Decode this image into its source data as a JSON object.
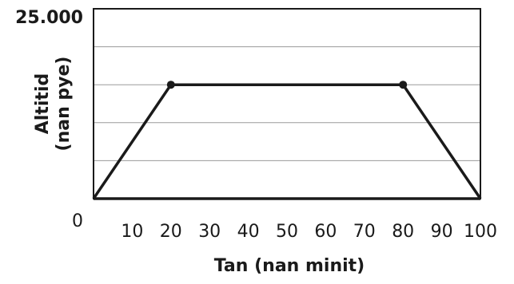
{
  "chart_data": {
    "type": "line",
    "title": "",
    "xlabel": "Tan (nan minit)",
    "ylabel_lines": [
      "Altitid",
      "(nan pye)"
    ],
    "xlim": [
      0,
      100
    ],
    "ylim": [
      0,
      25000
    ],
    "y_top_label": "25.000",
    "x_tick_labels": [
      "0",
      "10",
      "20",
      "30",
      "40",
      "50",
      "60",
      "70",
      "80",
      "90",
      "100"
    ],
    "x_ticks": [
      0,
      10,
      20,
      30,
      40,
      50,
      60,
      70,
      80,
      90,
      100
    ],
    "y_gridlines": [
      5000,
      10000,
      15000,
      20000
    ],
    "grid": true,
    "series": [
      {
        "points": [
          {
            "x": 0,
            "y": 0
          },
          {
            "x": 20,
            "y": 15000
          },
          {
            "x": 80,
            "y": 15000
          },
          {
            "x": 100,
            "y": 0
          }
        ],
        "markers_at": [
          1,
          2
        ]
      }
    ],
    "colors": {
      "line": "#1a1a1a",
      "grid": "#9a9a9a",
      "frame": "#1a1a1a"
    }
  }
}
